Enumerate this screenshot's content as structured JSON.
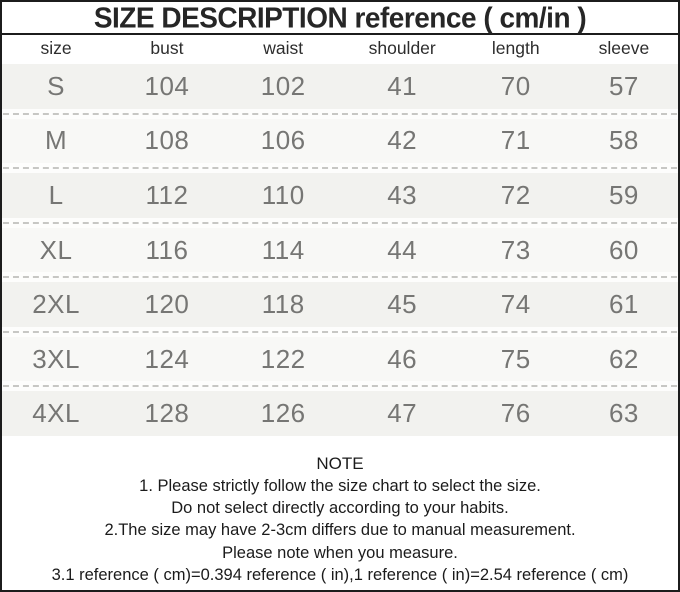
{
  "title": "SIZE DESCRIPTION reference ( cm/in )",
  "table": {
    "columns": [
      "size",
      "bust",
      "waist",
      "shoulder",
      "length",
      "sleeve"
    ],
    "rows": [
      [
        "S",
        "104",
        "102",
        "41",
        "70",
        "57"
      ],
      [
        "M",
        "108",
        "106",
        "42",
        "71",
        "58"
      ],
      [
        "L",
        "112",
        "110",
        "43",
        "72",
        "59"
      ],
      [
        "XL",
        "116",
        "114",
        "44",
        "73",
        "60"
      ],
      [
        "2XL",
        "120",
        "118",
        "45",
        "74",
        "61"
      ],
      [
        "3XL",
        "124",
        "122",
        "46",
        "75",
        "62"
      ],
      [
        "4XL",
        "128",
        "126",
        "47",
        "76",
        "63"
      ]
    ]
  },
  "note": {
    "heading": "NOTE",
    "lines": [
      "1. Please strictly follow the size chart to select the size.",
      "Do not select directly according to your habits.",
      "2.The size may have 2-3cm differs due to manual measurement.",
      "Please note when you measure.",
      "3.1 reference ( cm)=0.394 reference ( in),1 reference ( in)=2.54 reference ( cm)"
    ]
  },
  "colors": {
    "border": "#1c1c1c",
    "title_text": "#262626",
    "header_text": "#2d2d2d",
    "cell_text": "#767674",
    "row_shade": "#f2f2ef",
    "dashed_separator": "#c7c7c4",
    "note_text": "#1b1b1b"
  }
}
